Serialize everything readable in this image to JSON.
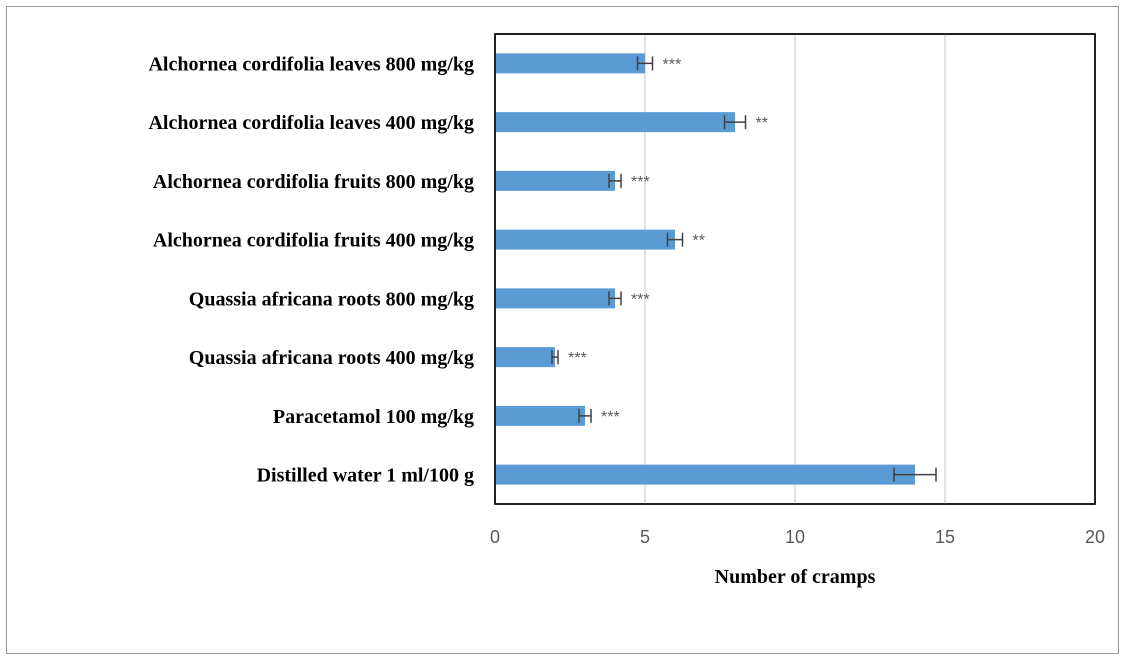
{
  "chart_data": {
    "type": "bar",
    "orientation": "horizontal",
    "categories": [
      "Alchornea cordifolia leaves 800 mg/kg",
      "Alchornea cordifolia leaves 400 mg/kg",
      "Alchornea cordifolia fruits 800 mg/kg",
      "Alchornea cordifolia fruits 400 mg/kg",
      "Quassia africana roots 800 mg/kg",
      "Quassia africana roots 400 mg/kg",
      "Paracetamol 100 mg/kg",
      "Distilled water 1 ml/100 g"
    ],
    "values": [
      5,
      8,
      4,
      6,
      4,
      2,
      3,
      14
    ],
    "errors": [
      0.25,
      0.35,
      0.2,
      0.25,
      0.2,
      0.1,
      0.2,
      0.7
    ],
    "annotations": [
      "***",
      "**",
      "***",
      "**",
      "***",
      "***",
      "***",
      ""
    ],
    "title": "",
    "xlabel": "Number of cramps",
    "ylabel": "",
    "xlim": [
      0,
      20
    ],
    "xticks": [
      "0",
      "5",
      "10",
      "15",
      "20"
    ],
    "xtick_values": [
      0,
      5,
      10,
      15,
      20
    ],
    "grid": "vertical",
    "legend": "none",
    "colors": {
      "bar": "#5b9bd5",
      "error_bar": "#404040",
      "grid": "#d9d9d9",
      "plot_border": "#000000",
      "annotation": "#595959"
    }
  }
}
